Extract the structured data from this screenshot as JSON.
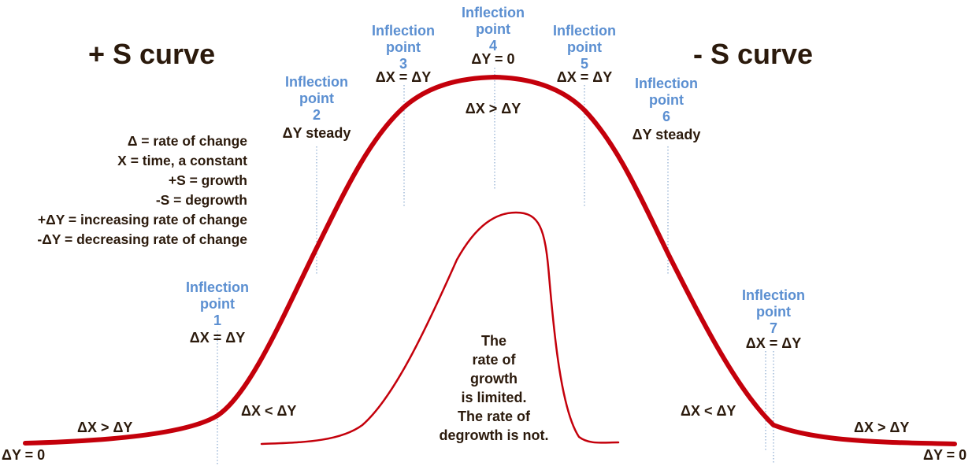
{
  "titles": {
    "plus_s": "+ S curve",
    "minus_s": "- S curve"
  },
  "legend": [
    "Δ = rate of change",
    "X = time, a constant",
    "+S = growth",
    "-S = degrowth",
    "+ΔY = increasing rate of change",
    "-ΔY = decreasing rate of change"
  ],
  "inflection_points": [
    {
      "l1": "Inflection",
      "l2": "point",
      "num": "1",
      "condition": "ΔX = ΔY"
    },
    {
      "l1": "Inflection",
      "l2": "point",
      "num": "2",
      "condition": "ΔY steady"
    },
    {
      "l1": "Inflection",
      "l2": "point",
      "num": "3",
      "condition": "ΔX = ΔY"
    },
    {
      "l1": "Inflection",
      "l2": "point",
      "num": "4",
      "condition": "ΔY = 0"
    },
    {
      "l1": "Inflection",
      "l2": "point",
      "num": "5",
      "condition": "ΔX = ΔY"
    },
    {
      "l1": "Inflection",
      "l2": "point",
      "num": "6",
      "condition": "ΔY steady"
    },
    {
      "l1": "Inflection",
      "l2": "point",
      "num": "7",
      "condition": "ΔX = ΔY"
    }
  ],
  "labels": {
    "left_dy0": "ΔY = 0",
    "right_dy0": "ΔY = 0",
    "left_dx_gt": "ΔX > ΔY",
    "left_dx_lt": "ΔX < ΔY",
    "top_dx_gt": "ΔX > ΔY",
    "right_dx_lt": "ΔX < ΔY",
    "right_dx_gt": "ΔX > ΔY"
  },
  "note": [
    "The",
    "rate of",
    "growth",
    "is limited.",
    "The rate of",
    "degrowth is not."
  ],
  "colors": {
    "curve": "#c4000b",
    "inflection_text": "#5b8fd1",
    "text": "#2b1a0c",
    "guide": "#8aa9cf"
  }
}
